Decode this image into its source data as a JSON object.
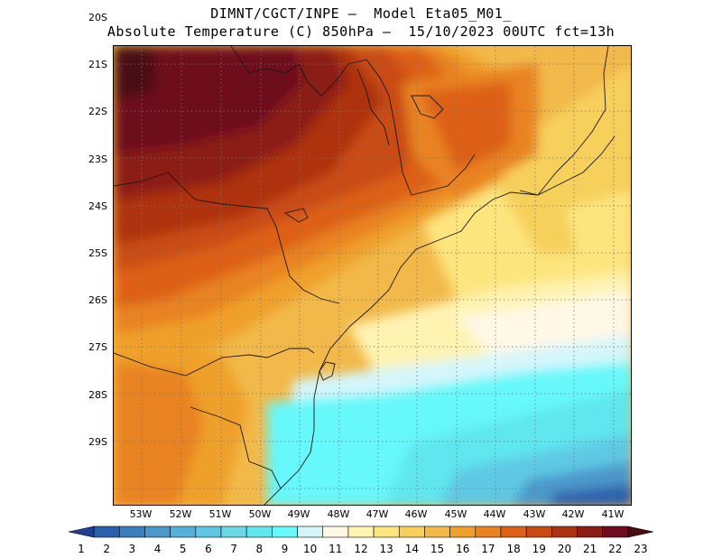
{
  "header": {
    "line1": "DIMNT/CGCT/INPE –  Model Eta05_M01_",
    "line2": "Absolute Temperature (C) 850hPa –  15/10/2023 00UTC fct=13h"
  },
  "axes": {
    "lat_labels": [
      "20S",
      "21S",
      "22S",
      "23S",
      "24S",
      "25S",
      "26S",
      "27S",
      "28S",
      "29S"
    ],
    "lon_labels": [
      "53W",
      "52W",
      "51W",
      "50W",
      "49W",
      "48W",
      "47W",
      "46W",
      "45W",
      "44W",
      "43W",
      "42W",
      "41W"
    ]
  },
  "colorbar": {
    "labels": [
      "1",
      "2",
      "3",
      "4",
      "5",
      "6",
      "7",
      "8",
      "9",
      "10",
      "11",
      "12",
      "13",
      "14",
      "15",
      "16",
      "17",
      "18",
      "19",
      "20",
      "21",
      "22",
      "23"
    ],
    "colors": [
      "#1f3f95",
      "#2a5fae",
      "#3a7ec0",
      "#4b98cc",
      "#54b1da",
      "#5ec8e4",
      "#6cd8e6",
      "#5fe6ee",
      "#66f8fa",
      "#d4f6fb",
      "#fff8e6",
      "#fff3b2",
      "#fde57e",
      "#f7d05c",
      "#f2b94a",
      "#efa02a",
      "#e98322",
      "#dd6014",
      "#c94b12",
      "#ad3310",
      "#8c1d14",
      "#6e0b1e",
      "#4a0a12"
    ]
  }
}
